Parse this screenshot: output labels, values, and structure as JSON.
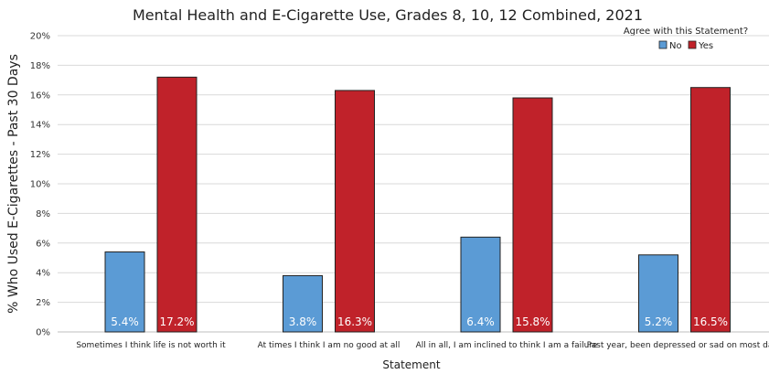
{
  "chart_data": {
    "type": "bar",
    "title": "Mental Health and E-Cigarette Use, Grades 8, 10, 12 Combined, 2021",
    "xlabel": "Statement",
    "ylabel": "% Who Used E-Cigarettes - Past 30 Days",
    "ylim": [
      0,
      20
    ],
    "yticks": [
      "0%",
      "2%",
      "4%",
      "6%",
      "8%",
      "10%",
      "12%",
      "14%",
      "16%",
      "18%",
      "20%"
    ],
    "grid": true,
    "categories": [
      "Sometimes I think life is not worth it",
      "At times I think I am no good at all",
      "All in all, I am inclined to think I am a failure",
      "Past year, been depressed or sad on most days"
    ],
    "legend": {
      "title": "Agree with this Statement?",
      "placement": "top-right"
    },
    "series": [
      {
        "name": "No",
        "color": "#5b9bd5",
        "values": [
          5.4,
          3.8,
          6.4,
          5.2
        ],
        "labels": [
          "5.4%",
          "3.8%",
          "6.4%",
          "5.2%"
        ]
      },
      {
        "name": "Yes",
        "color": "#c0222a",
        "values": [
          17.2,
          16.3,
          15.8,
          16.5
        ],
        "labels": [
          "17.2%",
          "16.3%",
          "15.8%",
          "16.5%"
        ]
      }
    ]
  }
}
